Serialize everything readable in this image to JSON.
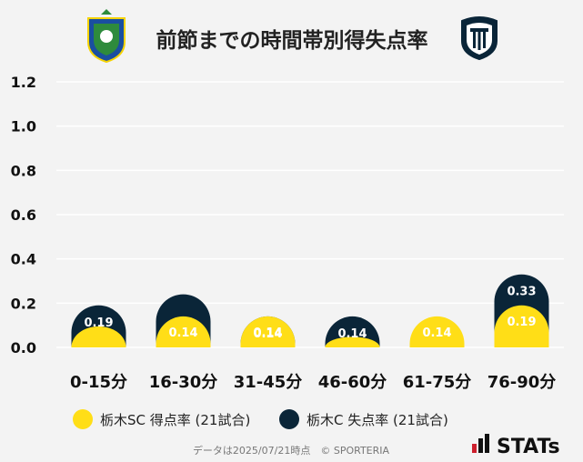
{
  "title": "前節までの時間帯別得失点率",
  "home_team": "栃木SC",
  "away_team": "栃木C",
  "colors": {
    "scored": "#ffde17",
    "conceded": "#0a2538",
    "grid": "#ffffff",
    "background": "#f3f3f3"
  },
  "legend": [
    {
      "label": "栃木SC 得点率 (21試合)",
      "color": "#ffde17"
    },
    {
      "label": "栃木C 失点率 (21試合)",
      "color": "#0a2538"
    }
  ],
  "footer": "データは2025/07/21時点　© SPORTERIA",
  "brand": "STATs",
  "chart_data": {
    "type": "bar",
    "categories": [
      "0-15分",
      "16-30分",
      "31-45分",
      "46-60分",
      "61-75分",
      "76-90分"
    ],
    "series": [
      {
        "name": "栃木SC 得点率 (21試合)",
        "values": [
          0.095,
          0.14,
          0.14,
          0.048,
          0.14,
          0.19
        ],
        "labels": [
          "",
          "0.14",
          "0.14",
          "",
          "0.14",
          "0.19"
        ]
      },
      {
        "name": "栃木C 失点率 (21試合)",
        "values": [
          0.19,
          0.24,
          0.14,
          0.14,
          0.0,
          0.33
        ],
        "labels": [
          "0.19",
          "",
          "0.14",
          "0.14",
          "",
          "0.33"
        ]
      }
    ],
    "yticks": [
      "0.0",
      "0.2",
      "0.4",
      "0.6",
      "0.8",
      "1.0",
      "1.2"
    ],
    "ylim": [
      0,
      1.2
    ],
    "grid": true,
    "legend_position": "bottom"
  }
}
